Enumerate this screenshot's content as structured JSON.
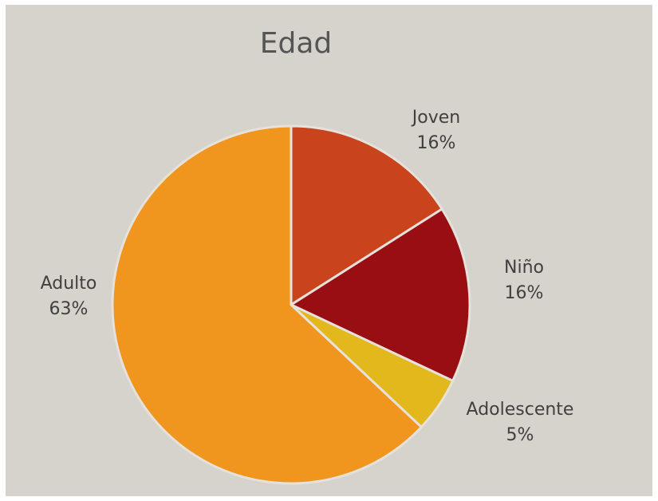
{
  "chart_data": {
    "type": "pie",
    "title": "Edad",
    "slices": [
      {
        "label": "Joven",
        "value": 16,
        "display": "16%",
        "color": "#c9431c"
      },
      {
        "label": "Niño",
        "value": 16,
        "display": "16%",
        "color": "#990e12"
      },
      {
        "label": "Adolescente",
        "value": 5,
        "display": "5%",
        "color": "#e2b81c"
      },
      {
        "label": "Adulto",
        "value": 63,
        "display": "63%",
        "color": "#f0951d"
      }
    ],
    "start": "12 o'clock",
    "direction": "clockwise",
    "slice_separator_color": "#e6e1da"
  }
}
